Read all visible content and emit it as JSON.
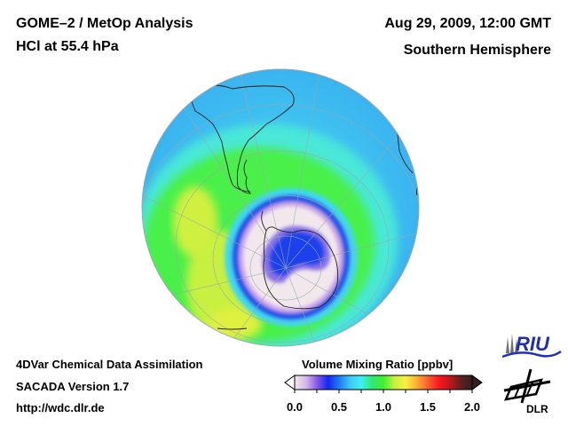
{
  "header": {
    "title_line1": "GOME–2 / MetOp Analysis",
    "title_line2": "HCl at 55.4 hPa",
    "date": "Aug 29, 2009, 12:00 GMT",
    "region": "Southern Hemisphere"
  },
  "footer": {
    "line1": "4DVar Chemical Data Assimilation",
    "line2": "SACADA Version 1.7",
    "line3": "http://wdc.dlr.de"
  },
  "colorbar": {
    "title": "Volume Mixing Ratio [ppbv]",
    "ticks": [
      "0.0",
      "0.5",
      "1.0",
      "1.5",
      "2.0"
    ],
    "range": [
      0.0,
      2.0
    ],
    "colors": [
      "#f2e8ec",
      "#d8b8e8",
      "#8a5ae8",
      "#1428f0",
      "#1e7af0",
      "#3ec8f4",
      "#3ef0f0",
      "#30e870",
      "#40f030",
      "#c8f040",
      "#f8f040",
      "#f8b030",
      "#f86030",
      "#f81820",
      "#c01818",
      "#602020",
      "#302020"
    ]
  },
  "logos": {
    "riu": "RIU",
    "dlr": "DLR"
  },
  "colors": {
    "ocean_cyan": "#3ec0f0",
    "green_band": "#40f040",
    "yellow_band": "#d8f040",
    "hole_white": "#f0e8ec",
    "hole_blue": "#2040e8",
    "riu_blue": "#1f2fa8"
  }
}
